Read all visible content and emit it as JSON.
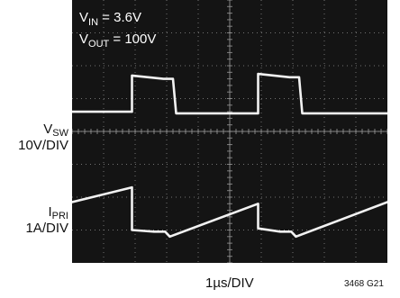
{
  "chart_data": {
    "type": "line",
    "annotations": [
      {
        "main": "V",
        "sub": "IN",
        "rest": " = 3.6V"
      },
      {
        "main": "V",
        "sub": "OUT",
        "rest": " = 100V"
      }
    ],
    "channels": [
      {
        "name_main": "V",
        "name_sub": "SW",
        "scale": "10V/DIV"
      },
      {
        "name_main": "I",
        "name_sub": "PRI",
        "scale": "1A/DIV"
      }
    ],
    "xlabel": "1µs/DIV",
    "figure_id": "3468 G21",
    "grid": true,
    "x_divisions": 10,
    "y_divisions": 8,
    "x_unit": "µs",
    "series": [
      {
        "id": "vsw",
        "x": [
          0.0,
          1.9,
          1.9,
          2.9,
          3.2,
          3.3,
          5.9,
          5.9,
          6.9,
          7.2,
          7.3,
          10.0
        ],
        "y": [
          4.6,
          4.6,
          5.7,
          5.6,
          5.6,
          4.55,
          4.55,
          5.75,
          5.65,
          5.65,
          4.55,
          4.55
        ]
      },
      {
        "id": "ipri",
        "x": [
          0.0,
          1.9,
          1.9,
          2.6,
          2.95,
          3.1,
          5.9,
          5.9,
          6.6,
          6.95,
          7.1,
          10.0
        ],
        "y": [
          1.85,
          2.3,
          1.0,
          0.95,
          0.95,
          0.8,
          1.8,
          1.05,
          0.95,
          0.95,
          0.8,
          1.85
        ]
      }
    ],
    "trace_color": "#f2f2f2",
    "screen_color": "#141414",
    "grid_color": "#9a9a9a"
  }
}
